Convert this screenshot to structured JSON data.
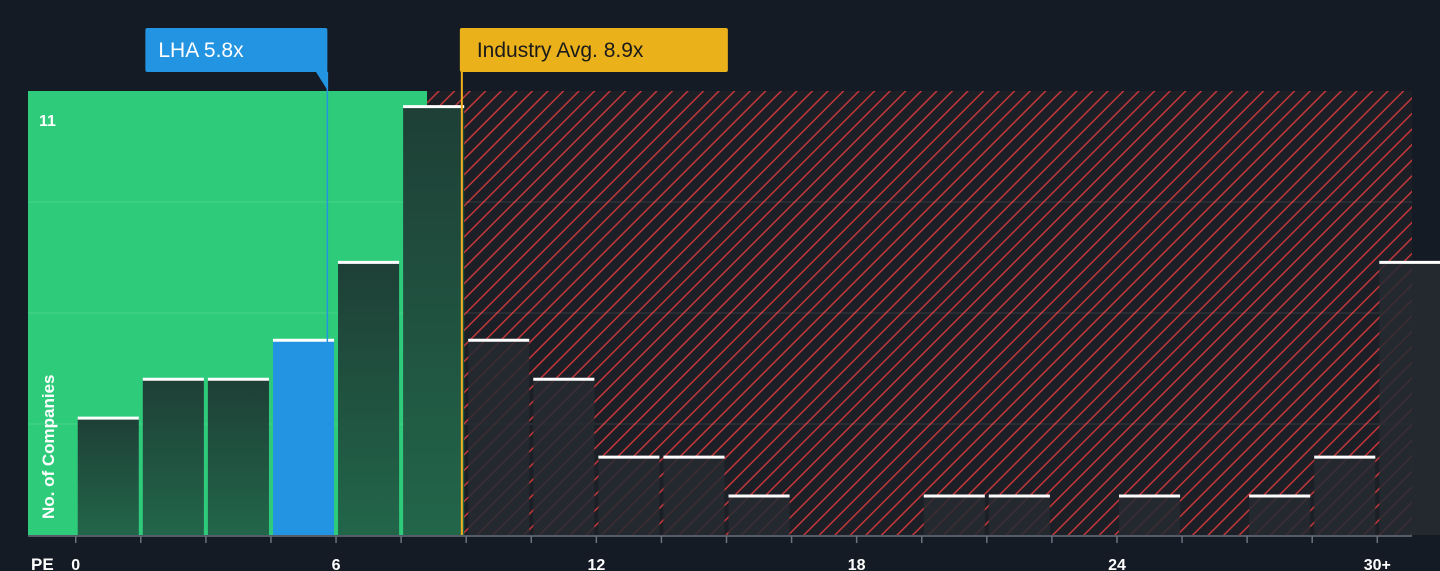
{
  "chart_data": {
    "type": "bar",
    "title": "",
    "xlabel": "PE",
    "ylabel": "No. of Companies",
    "x_ticks": [
      "0",
      "6",
      "12",
      "18",
      "24",
      "30+"
    ],
    "x_tick_values": [
      0,
      6,
      12,
      18,
      24,
      30
    ],
    "xlim": [
      -1.1,
      30.8
    ],
    "ylim": [
      0,
      11.4
    ],
    "y_max_label": "11",
    "bin_width": 1.5,
    "bins_start": [
      0,
      1.5,
      3,
      4.5,
      6,
      7.5,
      9,
      10.5,
      12,
      13.5,
      15,
      16.5,
      18,
      19.5,
      21,
      22.5,
      24,
      25.5,
      27,
      28.5,
      30
    ],
    "values": [
      3,
      4,
      4,
      5,
      7,
      11,
      5,
      4,
      2,
      2,
      1,
      0,
      0,
      1,
      1,
      0,
      1,
      0,
      1,
      2,
      7
    ],
    "highlight_bin_index": 3,
    "company": {
      "label": "LHA 5.8x",
      "pe": 5.8
    },
    "industry": {
      "label": "Industry Avg. 8.9x",
      "pe": 8.9
    },
    "fair_zone_end": 8.1,
    "colors": {
      "background": "#151b24",
      "fair_zone": "#2ecc7a",
      "bar": "#1e4a3b",
      "bar_expensive": "#262b31",
      "highlight": "#2394e1",
      "hatch": "#c4373a",
      "cap": "#ffffff",
      "company_line": "#2394e1",
      "industry_line": "#f2b01e",
      "company_box": "#2394e1",
      "industry_box": "#eab11b",
      "industry_text": "#1a1a1a",
      "company_text": "#ffffff"
    }
  }
}
